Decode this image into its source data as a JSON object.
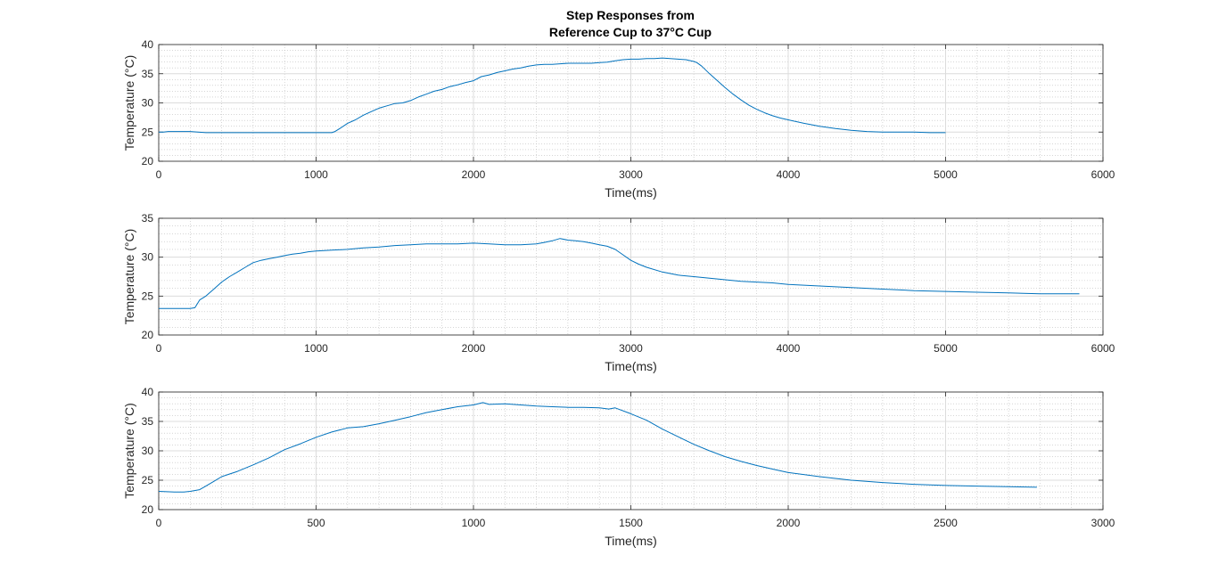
{
  "figure": {
    "title_line1": "Step Responses from",
    "title_line2": "Reference Cup to 37°C Cup"
  },
  "colors": {
    "series": "#0072BD",
    "axes": "#262626",
    "grid_major": "#dcdcdc",
    "grid_minor": "#bdbdbd"
  },
  "chart_data": [
    {
      "type": "line",
      "title": "Step Responses from Reference Cup to 37°C Cup",
      "xlabel": "Time(ms)",
      "ylabel": "Temperature (°C)",
      "xlim": [
        0,
        6000
      ],
      "ylim": [
        20,
        40
      ],
      "xticks": [
        0,
        1000,
        2000,
        3000,
        4000,
        5000,
        6000
      ],
      "yticks": [
        20,
        25,
        30,
        35,
        40
      ],
      "grid": true,
      "minor_grid": true,
      "series": [
        {
          "x": [
            0,
            30,
            60,
            100,
            150,
            200,
            250,
            300,
            400,
            600,
            800,
            1000,
            1100,
            1120,
            1150,
            1200,
            1250,
            1300,
            1350,
            1400,
            1450,
            1500,
            1550,
            1600,
            1650,
            1700,
            1750,
            1800,
            1850,
            1900,
            1950,
            2000,
            2050,
            2100,
            2150,
            2200,
            2250,
            2300,
            2350,
            2400,
            2450,
            2500,
            2550,
            2600,
            2650,
            2700,
            2750,
            2800,
            2850,
            2900,
            2950,
            3000,
            3050,
            3100,
            3150,
            3200,
            3250,
            3300,
            3350,
            3400,
            3420,
            3450,
            3500,
            3550,
            3600,
            3650,
            3700,
            3750,
            3800,
            3850,
            3900,
            3950,
            4000,
            4100,
            4200,
            4300,
            4400,
            4500,
            4600,
            4700,
            4800,
            4900,
            5000
          ],
          "y": [
            25.0,
            25.0,
            25.1,
            25.1,
            25.1,
            25.1,
            25.0,
            24.9,
            24.9,
            24.9,
            24.9,
            24.9,
            24.9,
            25.1,
            25.6,
            26.5,
            27.1,
            27.9,
            28.5,
            29.1,
            29.5,
            29.9,
            30.0,
            30.4,
            31.0,
            31.5,
            32.0,
            32.3,
            32.8,
            33.1,
            33.5,
            33.8,
            34.5,
            34.8,
            35.2,
            35.5,
            35.8,
            36.0,
            36.3,
            36.5,
            36.6,
            36.6,
            36.7,
            36.8,
            36.8,
            36.8,
            36.8,
            36.9,
            37.0,
            37.2,
            37.4,
            37.5,
            37.5,
            37.6,
            37.6,
            37.7,
            37.6,
            37.5,
            37.4,
            37.1,
            36.9,
            36.3,
            35.0,
            33.8,
            32.6,
            31.5,
            30.5,
            29.6,
            28.9,
            28.3,
            27.8,
            27.4,
            27.1,
            26.5,
            26.0,
            25.6,
            25.3,
            25.1,
            25.0,
            25.0,
            25.0,
            24.9,
            24.9
          ]
        }
      ]
    },
    {
      "type": "line",
      "xlabel": "Time(ms)",
      "ylabel": "Temperature (°C)",
      "xlim": [
        0,
        6000
      ],
      "ylim": [
        20,
        35
      ],
      "xticks": [
        0,
        1000,
        2000,
        3000,
        4000,
        5000,
        6000
      ],
      "yticks": [
        20,
        25,
        30,
        35
      ],
      "grid": true,
      "minor_grid": true,
      "series": [
        {
          "x": [
            0,
            100,
            200,
            230,
            260,
            300,
            350,
            400,
            450,
            500,
            550,
            600,
            650,
            700,
            750,
            800,
            850,
            900,
            950,
            1000,
            1100,
            1200,
            1300,
            1400,
            1500,
            1600,
            1700,
            1800,
            1900,
            2000,
            2100,
            2200,
            2300,
            2400,
            2450,
            2500,
            2550,
            2600,
            2650,
            2700,
            2750,
            2800,
            2850,
            2900,
            2950,
            3000,
            3050,
            3100,
            3200,
            3300,
            3400,
            3500,
            3600,
            3700,
            3800,
            3900,
            4000,
            4200,
            4400,
            4600,
            4800,
            5000,
            5200,
            5400,
            5600,
            5850
          ],
          "y": [
            23.4,
            23.4,
            23.4,
            23.5,
            24.5,
            25.0,
            25.9,
            26.8,
            27.5,
            28.1,
            28.7,
            29.3,
            29.6,
            29.8,
            30.0,
            30.2,
            30.4,
            30.5,
            30.7,
            30.8,
            30.9,
            31.0,
            31.2,
            31.3,
            31.5,
            31.6,
            31.7,
            31.7,
            31.7,
            31.8,
            31.7,
            31.6,
            31.6,
            31.7,
            31.9,
            32.1,
            32.4,
            32.2,
            32.1,
            32.0,
            31.8,
            31.6,
            31.4,
            31.0,
            30.3,
            29.6,
            29.1,
            28.7,
            28.1,
            27.7,
            27.5,
            27.3,
            27.1,
            26.9,
            26.8,
            26.7,
            26.5,
            26.3,
            26.1,
            25.9,
            25.7,
            25.6,
            25.5,
            25.4,
            25.3,
            25.3
          ]
        }
      ]
    },
    {
      "type": "line",
      "xlabel": "Time(ms)",
      "ylabel": "Temperature (°C)",
      "xlim": [
        0,
        3000
      ],
      "ylim": [
        20,
        40
      ],
      "xticks": [
        0,
        500,
        1000,
        1500,
        2000,
        2500,
        3000
      ],
      "yticks": [
        20,
        25,
        30,
        35,
        40
      ],
      "grid": true,
      "minor_grid": true,
      "series": [
        {
          "x": [
            0,
            50,
            80,
            100,
            130,
            150,
            175,
            200,
            250,
            300,
            350,
            400,
            450,
            500,
            550,
            600,
            650,
            700,
            750,
            800,
            850,
            900,
            950,
            1000,
            1030,
            1050,
            1100,
            1150,
            1200,
            1250,
            1300,
            1350,
            1400,
            1430,
            1450,
            1500,
            1550,
            1600,
            1650,
            1700,
            1750,
            1800,
            1850,
            1900,
            1950,
            2000,
            2100,
            2200,
            2300,
            2400,
            2500,
            2600,
            2700,
            2790
          ],
          "y": [
            23.1,
            23.0,
            23.0,
            23.1,
            23.4,
            24.0,
            24.8,
            25.6,
            26.5,
            27.6,
            28.8,
            30.2,
            31.2,
            32.3,
            33.2,
            33.9,
            34.1,
            34.6,
            35.2,
            35.8,
            36.5,
            37.0,
            37.5,
            37.8,
            38.2,
            37.9,
            38.0,
            37.8,
            37.6,
            37.5,
            37.4,
            37.4,
            37.3,
            37.1,
            37.3,
            36.3,
            35.2,
            33.7,
            32.4,
            31.1,
            30.0,
            29.0,
            28.2,
            27.5,
            26.9,
            26.3,
            25.6,
            25.0,
            24.6,
            24.3,
            24.1,
            24.0,
            23.9,
            23.8
          ]
        }
      ]
    }
  ]
}
